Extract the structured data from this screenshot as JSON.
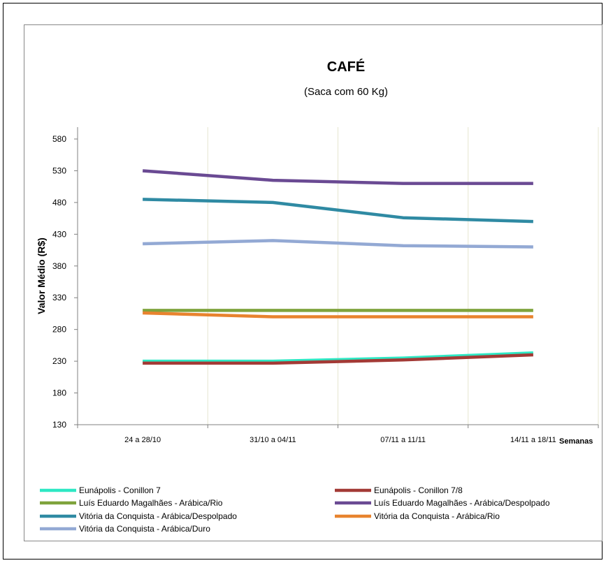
{
  "chart_data": {
    "type": "line",
    "title": "CAFÉ",
    "subtitle": "(Saca com 60 Kg)",
    "xlabel": "Semanas",
    "ylabel": "Valor Médio (R$)",
    "categories": [
      "24 a 28/10",
      "31/10 a 04/11",
      "07/11 a 11/11",
      "14/11 a 18/11"
    ],
    "ylim": [
      130,
      580
    ],
    "yticks": [
      130,
      180,
      230,
      280,
      330,
      380,
      430,
      480,
      530,
      580
    ],
    "grid": "vertical",
    "legend": "bottom",
    "series": [
      {
        "name": "Eunápolis - Conillon 7",
        "color": "#2ee8c4",
        "values": [
          230,
          230,
          235,
          243
        ]
      },
      {
        "name": "Eunápolis - Conillon 7/8",
        "color": "#a33a36",
        "values": [
          227,
          227,
          232,
          240
        ]
      },
      {
        "name": "Luís Eduardo Magalhães - Arábica/Rio",
        "color": "#7fa33c",
        "values": [
          310,
          310,
          310,
          310
        ]
      },
      {
        "name": "Luís Eduardo Magalhães - Arábica/Despolpado",
        "color": "#6a4a93",
        "values": [
          530,
          515,
          510,
          510
        ]
      },
      {
        "name": "Vitória da Conquista - Arábica/Despolpado",
        "color": "#2f8aa3",
        "values": [
          485,
          480,
          456,
          450
        ]
      },
      {
        "name": "Vitória da Conquista - Arábica/Rio",
        "color": "#e8832e",
        "values": [
          306,
          300,
          300,
          300
        ]
      },
      {
        "name": "Vitória da Conquista - Arábica/Duro",
        "color": "#93a9d4",
        "values": [
          415,
          420,
          412,
          410
        ]
      }
    ]
  }
}
